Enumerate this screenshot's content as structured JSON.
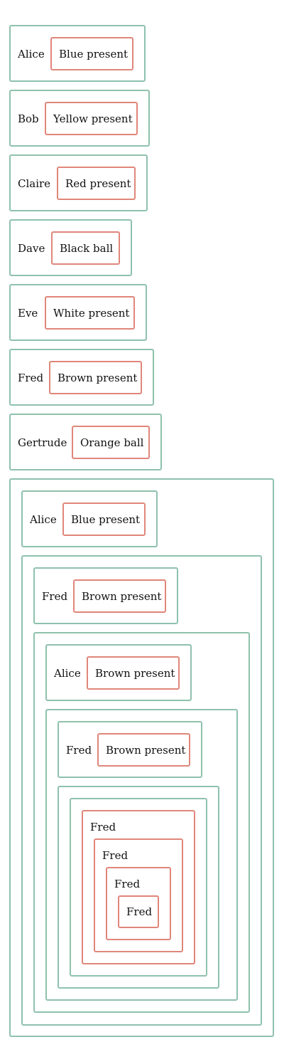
{
  "colors": {
    "person_border": "#8fc1ad",
    "item_border": "#e0867a",
    "text": "#111111",
    "background": "#ffffff"
  },
  "rows": [
    {
      "person": "Alice",
      "item": "Blue present"
    },
    {
      "person": "Bob",
      "item": "Yellow present"
    },
    {
      "person": "Claire",
      "item": "Red present"
    },
    {
      "person": "Dave",
      "item": "Black ball"
    },
    {
      "person": "Eve",
      "item": "White present"
    },
    {
      "person": "Fred",
      "item": "Brown present"
    },
    {
      "person": "Gertrude",
      "item": "Orange ball"
    }
  ],
  "nested": {
    "level1": {
      "person": "Alice",
      "item": "Blue present"
    },
    "level2": {
      "person": "Fred",
      "item": "Brown present"
    },
    "level3": {
      "person": "Alice",
      "item": "Brown present"
    },
    "level4": {
      "person": "Fred",
      "item": "Brown present"
    },
    "fred_chain": [
      "Fred",
      "Fred",
      "Fred",
      "Fred"
    ]
  }
}
